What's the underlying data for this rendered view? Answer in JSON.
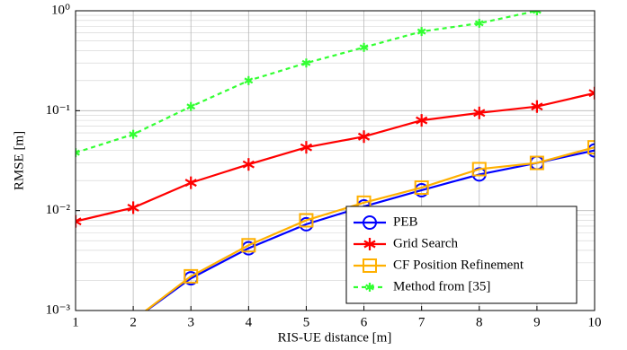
{
  "chart_data": {
    "type": "line",
    "x_label": "RIS-UE distance [m]",
    "y_label": "RMSE [m]",
    "x": [
      1,
      2,
      3,
      4,
      5,
      6,
      7,
      8,
      9,
      10
    ],
    "xlim": [
      1,
      10
    ],
    "xticks": [
      1,
      2,
      3,
      4,
      5,
      6,
      7,
      8,
      9,
      10
    ],
    "ylim": [
      0.001,
      1
    ],
    "y_scale": "log",
    "yticks": [
      {
        "value": 0.001,
        "label": "10⁻³"
      },
      {
        "value": 0.01,
        "label": "10⁻²"
      },
      {
        "value": 0.1,
        "label": "10⁻¹"
      },
      {
        "value": 1,
        "label": "10⁰"
      }
    ],
    "grid": true,
    "minor_grid": true,
    "legend_position": "lower right",
    "series": [
      {
        "name": "PEB",
        "color": "#0000ff",
        "marker": "circle",
        "dash": false,
        "values": [
          null,
          0.0008,
          0.0021,
          0.0042,
          0.0073,
          0.011,
          0.016,
          0.023,
          0.03,
          0.04
        ]
      },
      {
        "name": "Grid Search",
        "color": "#ff0000",
        "marker": "asterisk",
        "dash": false,
        "values": [
          0.0078,
          0.0107,
          0.019,
          0.029,
          0.043,
          0.055,
          0.08,
          0.095,
          0.11,
          0.15
        ]
      },
      {
        "name": "CF Position Refinement",
        "color": "#ffb000",
        "marker": "square",
        "dash": false,
        "values": [
          null,
          0.0008,
          0.0022,
          0.0045,
          0.008,
          0.012,
          0.017,
          0.026,
          0.03,
          0.043
        ]
      },
      {
        "name": "Method from [35]",
        "color": "#33ff33",
        "marker": "asterisk",
        "dash": true,
        "values": [
          0.038,
          0.058,
          0.11,
          0.2,
          0.3,
          0.43,
          0.62,
          0.75,
          1.0,
          1.3
        ]
      }
    ]
  }
}
